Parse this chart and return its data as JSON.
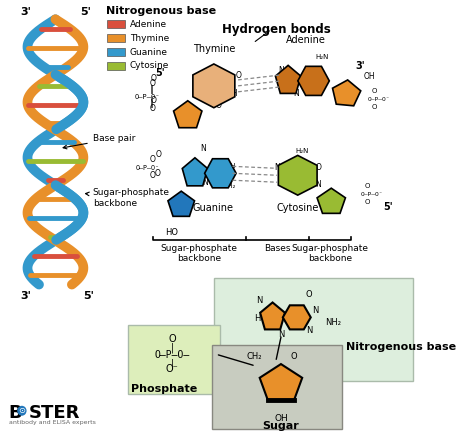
{
  "bg_color": "#ffffff",
  "legend_title": "Nitrogenous base",
  "legend_items": [
    {
      "label": "Adenine",
      "color": "#d94f3d"
    },
    {
      "label": "Thymine",
      "color": "#e8902a"
    },
    {
      "label": "Guanine",
      "color": "#3399cc"
    },
    {
      "label": "Cytosine",
      "color": "#99bb33"
    }
  ],
  "section_labels": {
    "hydrogen_bonds": "Hydrogen bonds",
    "thymine": "Thymine",
    "adenine": "Adenine",
    "guanine": "Guanine",
    "cytosine": "Cytosine",
    "sugar_phosphate_left": "Sugar-phosphate\nbackbone",
    "bases": "Bases",
    "sugar_phosphate_right": "Sugar-phosphate\nbackbone",
    "base_pair": "Base pair",
    "sugar_phosphate_backbone": "Sugar-phosphate\nbackbone",
    "phosphate": "Phosphate",
    "sugar": "Sugar",
    "nitrogenous_base": "Nitrogenous base"
  },
  "colors": {
    "adenine_dark": "#c8701a",
    "adenine_light": "#e8a060",
    "thymine_fill": "#e8b07a",
    "guanine_fill": "#3399cc",
    "cytosine_fill": "#99bb33",
    "sugar_orange": "#e8902a",
    "sugar_blue": "#2277bb",
    "sugar_green": "#99bb33",
    "phosphate_box": "#ddeebb",
    "sugar_box": "#ccccbb",
    "nitrogenous_box": "#ddeedd",
    "line_color": "#333333"
  },
  "boster_color": "#2277bb"
}
